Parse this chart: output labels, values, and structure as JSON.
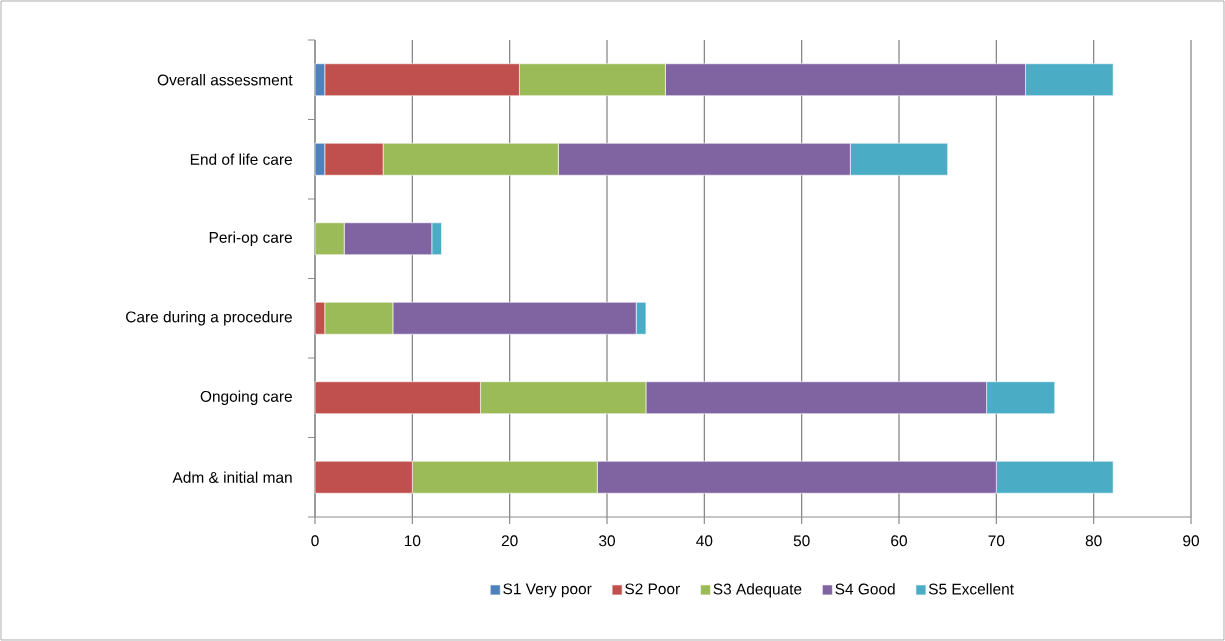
{
  "chart_data": {
    "type": "bar",
    "orientation": "horizontal",
    "stacked": true,
    "categories": [
      "Overall assessment",
      "End of life care",
      "Peri-op care",
      "Care during a procedure",
      "Ongoing care",
      "Adm & initial man"
    ],
    "series": [
      {
        "name": "S1 Very poor",
        "color": "#4f81bd",
        "values": [
          1,
          1,
          0,
          0,
          0,
          0
        ]
      },
      {
        "name": "S2 Poor",
        "color": "#c0504d",
        "values": [
          20,
          6,
          0,
          1,
          17,
          10
        ]
      },
      {
        "name": "S3 Adequate",
        "color": "#9bbb59",
        "values": [
          15,
          18,
          3,
          7,
          17,
          19
        ]
      },
      {
        "name": "S4 Good",
        "color": "#8064a2",
        "values": [
          37,
          30,
          9,
          25,
          35,
          41
        ]
      },
      {
        "name": "S5 Excellent",
        "color": "#4bacc6",
        "values": [
          9,
          10,
          1,
          1,
          7,
          12
        ]
      }
    ],
    "xlim": [
      0,
      90
    ],
    "xticks": [
      0,
      10,
      20,
      30,
      40,
      50,
      60,
      70,
      80,
      90
    ],
    "grid": "x",
    "legend": "bottom"
  }
}
